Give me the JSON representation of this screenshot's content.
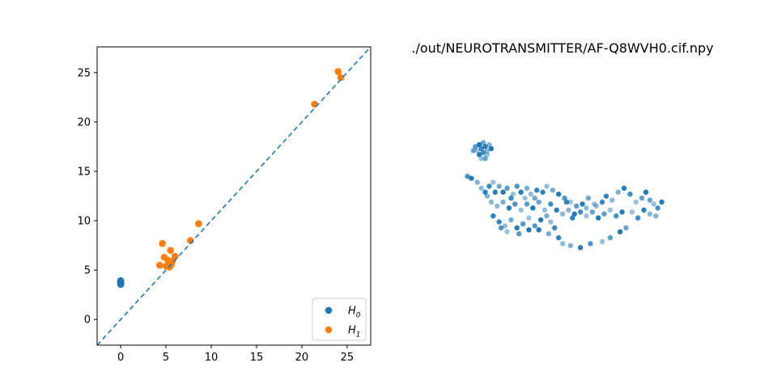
{
  "chart_data": [
    {
      "type": "scatter",
      "title": "",
      "xlabel": "",
      "ylabel": "",
      "xlim": [
        -2.6,
        27.6
      ],
      "ylim": [
        -2.6,
        27.6
      ],
      "xticks": [
        0,
        5,
        10,
        15,
        20,
        25
      ],
      "yticks": [
        0,
        5,
        10,
        15,
        20,
        25
      ],
      "xtick_labels": [
        "0",
        "5",
        "10",
        "15",
        "20",
        "25"
      ],
      "ytick_labels": [
        "0",
        "5",
        "10",
        "15",
        "20",
        "25"
      ],
      "diagonal": {
        "style": "dashed",
        "color": "#1f77b4"
      },
      "legend": {
        "placement": "lower-right"
      },
      "series": [
        {
          "name": "H0",
          "label_base": "H",
          "label_sub": "0",
          "color": "#1f77b4",
          "points": [
            [
              0,
              3.55
            ],
            [
              0,
              3.65
            ],
            [
              0,
              3.72
            ],
            [
              0,
              3.78
            ],
            [
              0,
              3.83
            ],
            [
              0,
              3.88
            ],
            [
              0,
              3.93
            ]
          ]
        },
        {
          "name": "H1",
          "label_base": "H",
          "label_sub": "1",
          "color": "#ff7f0e",
          "points": [
            [
              4.3,
              5.5
            ],
            [
              4.6,
              7.7
            ],
            [
              4.8,
              6.3
            ],
            [
              5.0,
              5.4
            ],
            [
              5.2,
              6.0
            ],
            [
              5.4,
              5.3
            ],
            [
              5.5,
              7.0
            ],
            [
              5.6,
              5.6
            ],
            [
              5.7,
              5.9
            ],
            [
              6.0,
              6.4
            ],
            [
              7.7,
              8.0
            ],
            [
              8.6,
              9.7
            ],
            [
              21.4,
              21.8
            ],
            [
              24.0,
              25.1
            ],
            [
              24.3,
              24.5
            ]
          ]
        }
      ]
    },
    {
      "type": "scatter",
      "title": "./out/NEUROTRANSMITTER/AF-Q8WVH0.cif.npy",
      "color": "#1f77b4",
      "axes": "off",
      "points": [
        [
          0.4,
          3.8
        ],
        [
          0.6,
          3.9
        ],
        [
          0.8,
          4.0
        ],
        [
          0.5,
          3.6
        ],
        [
          0.7,
          3.7
        ],
        [
          0.9,
          3.8
        ],
        [
          1.0,
          3.6
        ],
        [
          1.1,
          3.9
        ],
        [
          0.6,
          3.4
        ],
        [
          0.8,
          3.5
        ],
        [
          1.0,
          3.4
        ],
        [
          0.9,
          3.2
        ],
        [
          1.2,
          3.7
        ],
        [
          0.3,
          3.6
        ],
        [
          0.7,
          3.2
        ],
        [
          0.0,
          2.3
        ],
        [
          0.2,
          2.2
        ],
        [
          0.5,
          2.0
        ],
        [
          0.7,
          1.7
        ],
        [
          0.9,
          1.5
        ],
        [
          1.1,
          1.8
        ],
        [
          1.3,
          2.0
        ],
        [
          1.6,
          1.8
        ],
        [
          1.8,
          1.5
        ],
        [
          2.0,
          1.7
        ],
        [
          2.3,
          1.4
        ],
        [
          2.5,
          1.8
        ],
        [
          2.7,
          1.5
        ],
        [
          3.0,
          1.7
        ],
        [
          3.2,
          1.4
        ],
        [
          3.5,
          1.6
        ],
        [
          3.8,
          1.5
        ],
        [
          4.0,
          1.8
        ],
        [
          4.3,
          1.6
        ],
        [
          4.6,
          1.4
        ],
        [
          4.9,
          1.2
        ],
        [
          5.2,
          1.0
        ],
        [
          5.5,
          0.8
        ],
        [
          5.8,
          0.9
        ],
        [
          6.1,
          1.2
        ],
        [
          6.4,
          0.9
        ],
        [
          6.8,
          1.0
        ],
        [
          7.0,
          1.3
        ],
        [
          7.3,
          1.1
        ],
        [
          7.6,
          1.5
        ],
        [
          7.9,
          1.7
        ],
        [
          8.2,
          1.4
        ],
        [
          8.5,
          1.0
        ],
        [
          8.8,
          1.2
        ],
        [
          9.0,
          1.5
        ],
        [
          9.2,
          1.1
        ],
        [
          9.4,
          0.9
        ],
        [
          9.6,
          0.7
        ],
        [
          9.8,
          1.0
        ],
        [
          9.5,
          0.3
        ],
        [
          9.2,
          0.4
        ],
        [
          8.9,
          0.6
        ],
        [
          8.6,
          0.2
        ],
        [
          8.3,
          0.5
        ],
        [
          8.0,
          -0.3
        ],
        [
          7.7,
          -0.5
        ],
        [
          7.2,
          -0.8
        ],
        [
          6.8,
          -1.0
        ],
        [
          6.2,
          -1.1
        ],
        [
          5.7,
          -1.3
        ],
        [
          5.2,
          -1.2
        ],
        [
          4.8,
          -1.1
        ],
        [
          4.6,
          -0.8
        ],
        [
          4.4,
          -0.3
        ],
        [
          4.2,
          0.0
        ],
        [
          4.0,
          0.3
        ],
        [
          3.7,
          0.1
        ],
        [
          3.4,
          -0.2
        ],
        [
          3.1,
          0.2
        ],
        [
          2.8,
          -0.1
        ],
        [
          2.5,
          -0.3
        ],
        [
          2.2,
          0.1
        ],
        [
          1.9,
          -0.2
        ],
        [
          1.6,
          0.0
        ],
        [
          1.3,
          0.3
        ],
        [
          1.5,
          0.8
        ],
        [
          1.8,
          1.0
        ],
        [
          2.1,
          0.7
        ],
        [
          2.4,
          0.9
        ],
        [
          2.7,
          0.6
        ],
        [
          3.0,
          0.9
        ],
        [
          3.3,
          0.7
        ],
        [
          3.6,
          1.0
        ],
        [
          3.9,
          0.6
        ],
        [
          4.2,
          0.9
        ],
        [
          4.5,
          0.6
        ],
        [
          4.8,
          0.4
        ],
        [
          5.1,
          0.6
        ],
        [
          5.4,
          0.4
        ],
        [
          5.7,
          0.5
        ],
        [
          6.0,
          0.3
        ],
        [
          6.3,
          0.5
        ],
        [
          6.6,
          0.2
        ],
        [
          6.9,
          0.4
        ],
        [
          7.2,
          0.6
        ],
        [
          7.5,
          0.3
        ],
        [
          7.8,
          0.5
        ],
        [
          1.0,
          1.3
        ],
        [
          1.2,
          1.0
        ],
        [
          1.4,
          1.5
        ],
        [
          2.2,
          1.2
        ],
        [
          2.9,
          1.2
        ],
        [
          3.4,
          1.2
        ],
        [
          3.1,
          -0.4
        ],
        [
          2.6,
          -0.6
        ],
        [
          2.0,
          -0.5
        ],
        [
          1.7,
          -0.3
        ],
        [
          3.6,
          -0.4
        ],
        [
          4.1,
          -0.6
        ],
        [
          6.5,
          0.8
        ],
        [
          5.0,
          1.0
        ],
        [
          5.3,
          0.2
        ],
        [
          6.0,
          0.7
        ]
      ]
    }
  ]
}
